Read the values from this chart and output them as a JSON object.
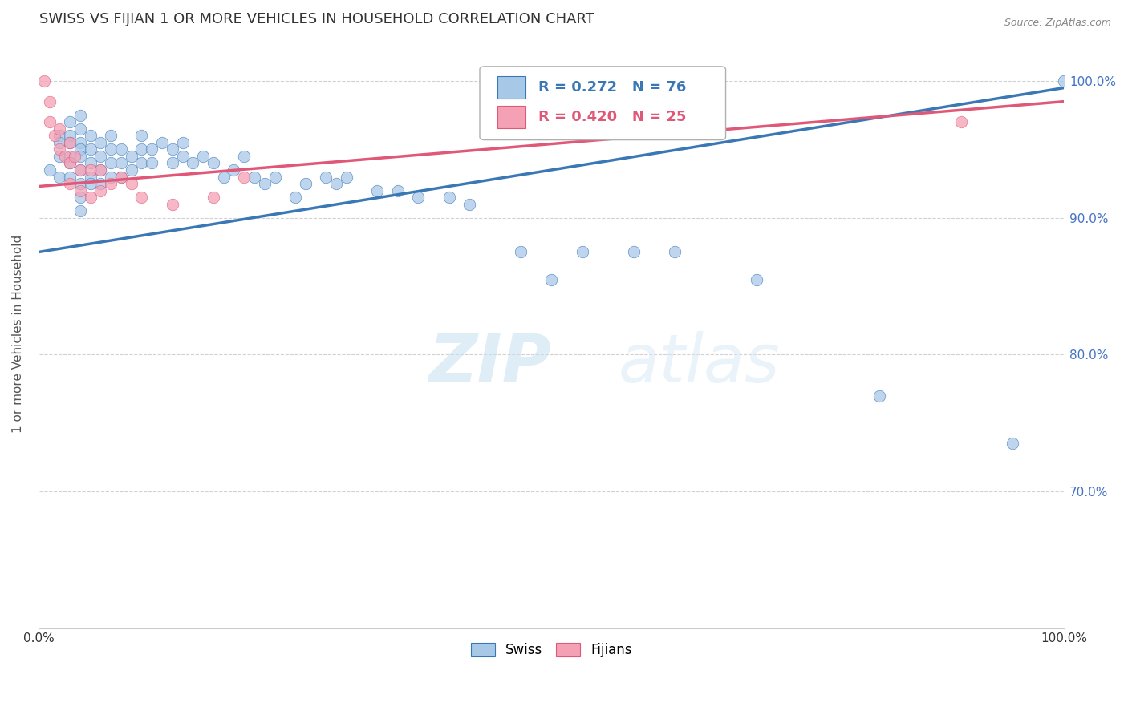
{
  "title": "SWISS VS FIJIAN 1 OR MORE VEHICLES IN HOUSEHOLD CORRELATION CHART",
  "source": "Source: ZipAtlas.com",
  "ylabel": "1 or more Vehicles in Household",
  "xmin": 0.0,
  "xmax": 1.0,
  "ymin": 0.6,
  "ymax": 1.03,
  "yticks": [
    0.7,
    0.8,
    0.9,
    1.0
  ],
  "ytick_labels": [
    "70.0%",
    "80.0%",
    "90.0%",
    "100.0%"
  ],
  "blue_color": "#a8c8e8",
  "pink_color": "#f4a0b5",
  "blue_line_color": "#3a78b5",
  "pink_line_color": "#e05878",
  "legend_blue_R": "R = 0.272",
  "legend_blue_N": "N = 76",
  "legend_pink_R": "R = 0.420",
  "legend_pink_N": "N = 25",
  "watermark": "ZIPatlas",
  "swiss_x": [
    0.01,
    0.02,
    0.02,
    0.02,
    0.02,
    0.03,
    0.03,
    0.03,
    0.03,
    0.03,
    0.03,
    0.04,
    0.04,
    0.04,
    0.04,
    0.04,
    0.04,
    0.04,
    0.04,
    0.04,
    0.05,
    0.05,
    0.05,
    0.05,
    0.05,
    0.06,
    0.06,
    0.06,
    0.06,
    0.07,
    0.07,
    0.07,
    0.07,
    0.08,
    0.08,
    0.08,
    0.09,
    0.09,
    0.1,
    0.1,
    0.1,
    0.11,
    0.11,
    0.12,
    0.13,
    0.13,
    0.14,
    0.14,
    0.15,
    0.16,
    0.17,
    0.18,
    0.19,
    0.2,
    0.21,
    0.22,
    0.23,
    0.25,
    0.26,
    0.28,
    0.29,
    0.3,
    0.33,
    0.35,
    0.37,
    0.4,
    0.42,
    0.47,
    0.5,
    0.53,
    0.58,
    0.62,
    0.7,
    0.82,
    0.95,
    1.0
  ],
  "swiss_y": [
    0.935,
    0.96,
    0.945,
    0.955,
    0.93,
    0.97,
    0.96,
    0.955,
    0.945,
    0.94,
    0.93,
    0.975,
    0.965,
    0.955,
    0.95,
    0.945,
    0.935,
    0.925,
    0.915,
    0.905,
    0.96,
    0.95,
    0.94,
    0.93,
    0.925,
    0.955,
    0.945,
    0.935,
    0.925,
    0.96,
    0.95,
    0.94,
    0.93,
    0.95,
    0.94,
    0.93,
    0.945,
    0.935,
    0.96,
    0.95,
    0.94,
    0.95,
    0.94,
    0.955,
    0.95,
    0.94,
    0.955,
    0.945,
    0.94,
    0.945,
    0.94,
    0.93,
    0.935,
    0.945,
    0.93,
    0.925,
    0.93,
    0.915,
    0.925,
    0.93,
    0.925,
    0.93,
    0.92,
    0.92,
    0.915,
    0.915,
    0.91,
    0.875,
    0.855,
    0.875,
    0.875,
    0.875,
    0.855,
    0.77,
    0.735,
    1.0
  ],
  "fijian_x": [
    0.005,
    0.01,
    0.01,
    0.015,
    0.02,
    0.02,
    0.025,
    0.03,
    0.03,
    0.03,
    0.035,
    0.04,
    0.04,
    0.05,
    0.05,
    0.06,
    0.06,
    0.07,
    0.08,
    0.09,
    0.1,
    0.13,
    0.17,
    0.2,
    0.9
  ],
  "fijian_y": [
    1.0,
    0.985,
    0.97,
    0.96,
    0.965,
    0.95,
    0.945,
    0.955,
    0.94,
    0.925,
    0.945,
    0.935,
    0.92,
    0.935,
    0.915,
    0.935,
    0.92,
    0.925,
    0.93,
    0.925,
    0.915,
    0.91,
    0.915,
    0.93,
    0.97
  ],
  "blue_trendline_x": [
    0.0,
    1.0
  ],
  "blue_trendline_y": [
    0.875,
    0.995
  ],
  "pink_trendline_x": [
    0.0,
    1.0
  ],
  "pink_trendline_y": [
    0.923,
    0.985
  ],
  "grid_color": "#cccccc",
  "bg_color": "#ffffff",
  "title_fontsize": 13,
  "label_fontsize": 11,
  "tick_fontsize": 11,
  "marker_size": 110
}
